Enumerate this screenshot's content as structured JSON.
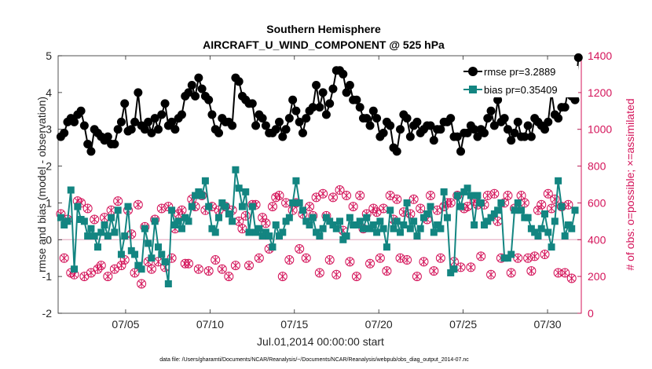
{
  "figure": {
    "title_line1": "Southern Hemisphere",
    "title_line2": "AIRCRAFT_U_WIND_COMPONENT @ 525 hPa",
    "xlabel": "Jul.01,2014 00:00:00 start",
    "ylabel_left": "rmse and bias (model - observation)",
    "ylabel_right": "# of obs: o=possible; ×=assimilated",
    "footnote": "data file: /Users/gharamti/Documents/NCAR/Reanalysis/~/Documents/NCAR/Reanalysis/webpub/obs_diag_output_2014-07.nc"
  },
  "legend": {
    "rmse_label": "rmse pr=3.2889",
    "bias_label": "bias pr=0.35409",
    "placement": "top-right"
  },
  "colors": {
    "rmse": "#000000",
    "bias": "#138581",
    "obs": "#d4145a",
    "zero_line": "#e6b3c6"
  },
  "chart_data": {
    "type": "line",
    "x_start": "2014-07-01",
    "xlim": [
      "2014-07-01",
      "2014-08-01"
    ],
    "xticks": [
      {
        "date": "2014-07-05",
        "label": "07/05"
      },
      {
        "date": "2014-07-10",
        "label": "07/10"
      },
      {
        "date": "2014-07-15",
        "label": "07/15"
      },
      {
        "date": "2014-07-20",
        "label": "07/20"
      },
      {
        "date": "2014-07-25",
        "label": "07/25"
      },
      {
        "date": "2014-07-30",
        "label": "07/30"
      }
    ],
    "ylim_left": [
      -2,
      5
    ],
    "yticks_left": [
      "-2",
      "-1",
      "0",
      "1",
      "2",
      "3",
      "4",
      "5"
    ],
    "ylim_right": [
      0,
      1400
    ],
    "yticks_right": [
      "0",
      "200",
      "400",
      "600",
      "800",
      "1000",
      "1200",
      "1400"
    ],
    "grid": false,
    "series": [
      {
        "name": "rmse pr=3.2889",
        "axis": "left",
        "values": [
          2.8,
          2.9,
          3.2,
          3.3,
          3.2,
          3.4,
          3.5,
          3.1,
          2.6,
          2.4,
          3.0,
          2.9,
          2.8,
          2.7,
          2.8,
          2.6,
          2.6,
          3.0,
          3.2,
          3.7,
          2.95,
          3.0,
          3.2,
          4.0,
          3.1,
          3.0,
          3.2,
          2.9,
          3.3,
          3.0,
          3.4,
          3.7,
          3.1,
          3.2,
          3.0,
          3.3,
          3.4,
          3.9,
          4.0,
          4.2,
          3.9,
          4.4,
          4.1,
          3.9,
          3.8,
          3.4,
          3.0,
          2.9,
          3.3,
          3.2,
          3.2,
          3.1,
          4.4,
          4.3,
          3.9,
          3.8,
          3.7,
          3.7,
          3.1,
          3.4,
          3.3,
          3.1,
          2.9,
          2.9,
          3.0,
          3.2,
          2.8,
          3.0,
          3.3,
          3.8,
          3.5,
          3.2,
          2.9,
          3.3,
          3.5,
          3.6,
          4.2,
          3.6,
          4.0,
          3.4,
          3.7,
          4.1,
          4.6,
          4.6,
          4.5,
          4.0,
          4.2,
          3.8,
          3.8,
          3.6,
          3.3,
          3.3,
          3.1,
          3.5,
          3.3,
          2.8,
          2.9,
          3.2,
          3.1,
          2.5,
          2.4,
          3.0,
          3.4,
          3.3,
          2.8,
          3.1,
          3.2,
          2.9,
          3.0,
          3.1,
          3.1,
          2.7,
          3.0,
          3.0,
          3.2,
          3.2,
          3.3,
          2.8,
          2.8,
          2.4,
          2.9,
          2.9,
          3.1,
          3.0,
          2.8,
          3.0,
          2.9,
          3.3,
          3.5,
          3.1,
          3.8,
          3.2,
          3.3,
          3.0,
          2.7,
          2.9,
          3.2,
          2.8,
          2.8,
          3.1,
          2.8,
          3.3,
          3.2,
          3.1,
          3.0,
          3.2,
          4.0,
          3.4,
          3.3,
          3.6,
          3.6,
          4.1,
          3.9,
          3.8,
          4.95
        ]
      },
      {
        "name": "bias pr=0.35409",
        "axis": "left",
        "values": [
          0.6,
          0.4,
          0.5,
          1.35,
          -0.8,
          0.9,
          0.55,
          0.5,
          0.1,
          0.3,
          0.1,
          -0.2,
          0.2,
          0.4,
          0.1,
          0.6,
          0.2,
          0.8,
          -0.4,
          0.1,
          0.9,
          -0.3,
          -0.4,
          -0.7,
          -0.8,
          0.3,
          -0.1,
          -0.5,
          0.5,
          -0.2,
          -0.4,
          -0.6,
          -1.2,
          0.8,
          0.4,
          0.5,
          0.3,
          0.6,
          0.5,
          0.9,
          1.2,
          1.3,
          1.2,
          1.6,
          0.9,
          0.3,
          0.2,
          0.6,
          1.0,
          0.9,
          0.7,
          0.5,
          1.9,
          1.4,
          0.9,
          1.3,
          0.2,
          0.9,
          0.2,
          0.3,
          0.1,
          0.2,
          0.1,
          -0.2,
          0.4,
          0.1,
          0.2,
          0.5,
          0.6,
          1.0,
          1.6,
          1.0,
          0.8,
          0.5,
          0.4,
          0.6,
          0.2,
          0.1,
          0.3,
          0.6,
          0.5,
          0.4,
          0.3,
          0.5,
          0.0,
          0.1,
          0.6,
          0.4,
          0.4,
          0.5,
          0.3,
          0.6,
          0.3,
          0.4,
          0.2,
          0.5,
          0.3,
          -0.2,
          0.8,
          0.3,
          0.5,
          0.2,
          0.4,
          1.0,
          0.3,
          0.5,
          0.1,
          0.3,
          0.6,
          0.7,
          0.9,
          0.2,
          0.4,
          0.3,
          1.3,
          0.6,
          -0.9,
          -0.8,
          1.2,
          0.9,
          1.3,
          1.4,
          1.2,
          0.4,
          1.2,
          1.0,
          0.4,
          0.5,
          0.6,
          0.7,
          0.8,
          1.0,
          -0.5,
          -0.5,
          -0.4,
          0.8,
          1.0,
          0.8,
          0.6,
          0.6,
          0.3,
          0.2,
          0.1,
          0.3,
          0.7,
          0.2,
          -0.2,
          0.5,
          1.6,
          0.9,
          0.1,
          0.4,
          0.3,
          0.8
        ]
      }
    ],
    "obs_possible": [
      540,
      300,
      510,
      220,
      210,
      610,
      600,
      200,
      570,
      220,
      510,
      240,
      260,
      520,
      200,
      560,
      240,
      610,
      260,
      290,
      560,
      430,
      220,
      590,
      160,
      470,
      280,
      240,
      510,
      280,
      570,
      250,
      580,
      300,
      460,
      540,
      560,
      270,
      270,
      620,
      580,
      240,
      640,
      560,
      230,
      580,
      290,
      560,
      240,
      580,
      200,
      560,
      260,
      500,
      460,
      530,
      260,
      590,
      590,
      300,
      520,
      490,
      350,
      580,
      630,
      640,
      200,
      600,
      290,
      560,
      600,
      350,
      540,
      300,
      580,
      530,
      630,
      220,
      650,
      530,
      290,
      630,
      210,
      670,
      450,
      640,
      280,
      580,
      200,
      640,
      460,
      540,
      270,
      570,
      550,
      300,
      570,
      230,
      640,
      510,
      620,
      300,
      550,
      290,
      540,
      620,
      200,
      570,
      280,
      510,
      640,
      230,
      560,
      300,
      580,
      600,
      600,
      280,
      640,
      250,
      570,
      580,
      250,
      610,
      590,
      310,
      590,
      640,
      210,
      650,
      500,
      300,
      600,
      640,
      220,
      570,
      300,
      640,
      600,
      300,
      230,
      310,
      560,
      590,
      320,
      650,
      570,
      620,
      220,
      580,
      220,
      590,
      190
    ],
    "obs_assimilated": [
      540,
      300,
      510,
      220,
      210,
      610,
      600,
      200,
      570,
      220,
      510,
      240,
      260,
      520,
      200,
      560,
      240,
      610,
      260,
      290,
      560,
      430,
      220,
      590,
      160,
      470,
      280,
      240,
      510,
      280,
      570,
      250,
      580,
      300,
      460,
      540,
      560,
      270,
      270,
      620,
      580,
      240,
      640,
      560,
      230,
      580,
      290,
      560,
      240,
      580,
      200,
      560,
      260,
      500,
      460,
      530,
      260,
      590,
      590,
      300,
      520,
      490,
      350,
      580,
      630,
      640,
      200,
      600,
      290,
      560,
      600,
      350,
      540,
      300,
      580,
      530,
      630,
      220,
      650,
      530,
      290,
      630,
      210,
      670,
      450,
      640,
      280,
      580,
      200,
      640,
      460,
      540,
      270,
      570,
      550,
      300,
      570,
      230,
      640,
      510,
      620,
      300,
      550,
      290,
      540,
      620,
      200,
      570,
      280,
      510,
      640,
      230,
      560,
      300,
      580,
      600,
      600,
      280,
      640,
      250,
      570,
      580,
      250,
      610,
      590,
      310,
      590,
      640,
      210,
      650,
      500,
      300,
      600,
      640,
      220,
      570,
      300,
      640,
      600,
      300,
      230,
      310,
      560,
      590,
      320,
      650,
      570,
      620,
      220,
      580,
      220,
      590,
      190
    ]
  }
}
